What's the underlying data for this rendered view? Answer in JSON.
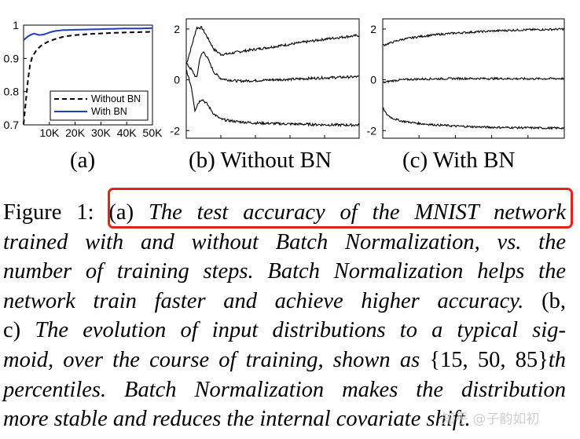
{
  "chart_data": [
    {
      "type": "line",
      "panel_label": "(a)",
      "xlim": [
        0,
        50000
      ],
      "ylim": [
        0.7,
        1.0
      ],
      "xticks": [
        "10K",
        "20K",
        "30K",
        "40K",
        "50K"
      ],
      "xtick_values": [
        10000,
        20000,
        30000,
        40000,
        50000
      ],
      "yticks": [
        "0.7",
        "0.8",
        "0.9",
        "1"
      ],
      "ytick_values": [
        0.7,
        0.8,
        0.9,
        1.0
      ],
      "legend": "bottom-right",
      "series": [
        {
          "name": "Without BN",
          "style": "dashed",
          "color": "#000000",
          "x": [
            0,
            1000,
            2000,
            3000,
            5000,
            7000,
            10000,
            13000,
            16000,
            20000,
            25000,
            30000,
            35000,
            40000,
            45000,
            50000
          ],
          "y": [
            0.7,
            0.78,
            0.86,
            0.9,
            0.925,
            0.94,
            0.952,
            0.96,
            0.966,
            0.97,
            0.973,
            0.975,
            0.977,
            0.978,
            0.979,
            0.98
          ]
        },
        {
          "name": "With BN",
          "style": "solid",
          "color": "#1f3fbf",
          "x": [
            0,
            2000,
            4000,
            6000,
            8000,
            10000,
            12000,
            15000,
            20000,
            25000,
            30000,
            35000,
            40000,
            45000,
            50000
          ],
          "y": [
            0.955,
            0.968,
            0.975,
            0.97,
            0.972,
            0.978,
            0.982,
            0.985,
            0.986,
            0.987,
            0.988,
            0.989,
            0.99,
            0.99,
            0.991
          ]
        }
      ]
    },
    {
      "type": "line",
      "panel_label": "(b) Without BN",
      "xlim": [
        0,
        50000
      ],
      "ylim": [
        -2.3,
        2.4
      ],
      "yticks": [
        "2",
        "0",
        "-2"
      ],
      "ytick_values": [
        2,
        0,
        -2
      ],
      "series": [
        {
          "percentile": "85th",
          "x": [
            0,
            1500,
            3000,
            4500,
            6000,
            8000,
            10000,
            12000,
            15000,
            20000,
            25000,
            30000,
            35000,
            40000,
            45000,
            50000
          ],
          "y": [
            0.6,
            1.3,
            2.05,
            2.05,
            1.7,
            1.2,
            1.0,
            1.02,
            1.1,
            1.2,
            1.3,
            1.4,
            1.5,
            1.6,
            1.68,
            1.75
          ]
        },
        {
          "percentile": "50th",
          "x": [
            0,
            1500,
            3000,
            4000,
            5000,
            6000,
            8000,
            10000,
            12000,
            15000,
            20000,
            25000,
            30000,
            35000,
            40000,
            45000,
            50000
          ],
          "y": [
            0.65,
            0.4,
            0.05,
            0.9,
            1.1,
            0.9,
            0.3,
            0.05,
            0.0,
            -0.05,
            -0.03,
            0.0,
            0.02,
            0.05,
            0.08,
            0.1,
            0.12
          ]
        },
        {
          "percentile": "15th",
          "x": [
            0,
            1500,
            2500,
            3500,
            4500,
            6000,
            8000,
            10000,
            12000,
            15000,
            20000,
            25000,
            30000,
            35000,
            40000,
            45000,
            50000
          ],
          "y": [
            0.4,
            -0.3,
            -1.2,
            -0.9,
            -0.75,
            -0.95,
            -1.35,
            -1.55,
            -1.6,
            -1.65,
            -1.7,
            -1.72,
            -1.74,
            -1.75,
            -1.77,
            -1.78,
            -1.78
          ]
        }
      ]
    },
    {
      "type": "line",
      "panel_label": "(c) With BN",
      "xlim": [
        0,
        50000
      ],
      "ylim": [
        -2.3,
        2.4
      ],
      "yticks": [
        "2",
        "0",
        "-2"
      ],
      "ytick_values": [
        2,
        0,
        -2
      ],
      "series": [
        {
          "percentile": "85th",
          "x": [
            0,
            2000,
            5000,
            10000,
            15000,
            20000,
            25000,
            30000,
            35000,
            40000,
            45000,
            50000
          ],
          "y": [
            1.35,
            1.45,
            1.58,
            1.7,
            1.78,
            1.84,
            1.88,
            1.92,
            1.95,
            1.97,
            1.98,
            2.0
          ],
          "noise": 0.04
        },
        {
          "percentile": "50th",
          "x": [
            0,
            2000,
            5000,
            10000,
            20000,
            30000,
            40000,
            50000
          ],
          "y": [
            -0.12,
            -0.05,
            0.0,
            0.03,
            0.05,
            0.05,
            0.04,
            0.05
          ],
          "noise": 0.04
        },
        {
          "percentile": "15th",
          "x": [
            0,
            1000,
            2500,
            5000,
            10000,
            15000,
            20000,
            25000,
            30000,
            35000,
            40000,
            45000,
            50000
          ],
          "y": [
            -1.1,
            -1.35,
            -1.5,
            -1.62,
            -1.72,
            -1.78,
            -1.82,
            -1.85,
            -1.87,
            -1.88,
            -1.89,
            -1.9,
            -1.9
          ],
          "noise": 0.04
        }
      ]
    }
  ],
  "figure": {
    "label_a": "(a)",
    "label_b": "(b) Without BN",
    "label_c": "(c) With BN"
  },
  "caption": {
    "l1a": "Figure 1:  (a) ",
    "l1b": "The test accuracy of the MNIST network",
    "l2": "trained with and without Batch Normalization, vs.  the",
    "l3": "number of training steps. Batch Normalization helps the",
    "l4a": "network train faster and achieve higher accuracy.",
    "l4b": "  (b,",
    "l5a": "c) ",
    "l5b": "The evolution of input distributions to a typical sig-",
    "l6a": "moid, over the course of training, shown as ",
    "l6b": "{15, 50, 85}",
    "l6c": "th",
    "l7": "percentiles. Batch Normalization makes the distribution",
    "l8": "more stable and reduces the internal covariate shift."
  },
  "watermark": "知乎 @子韵如初"
}
